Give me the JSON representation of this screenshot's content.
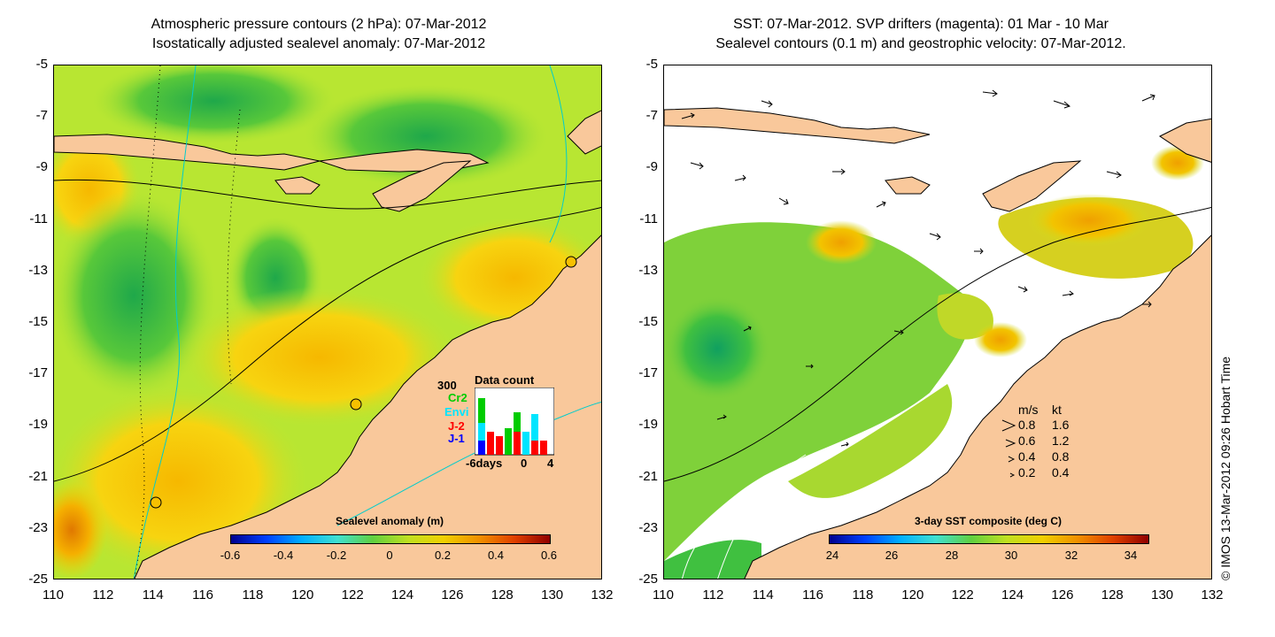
{
  "left_panel": {
    "title_line1": "Atmospheric pressure contours (2 hPa): 07-Mar-2012",
    "title_line2": "Isostatically adjusted sealevel anomaly: 07-Mar-2012",
    "colorbar": {
      "label": "Sealevel anomaly (m)",
      "ticks": [
        "-0.6",
        "-0.4",
        "-0.2",
        "0",
        "0.2",
        "0.4",
        "0.6"
      ]
    },
    "data_count": {
      "title": "Data count",
      "max_label": "300",
      "satellites": [
        {
          "name": "Cr2",
          "color": "#00cc00"
        },
        {
          "name": "Envi",
          "color": "#00e5ff"
        },
        {
          "name": "J-2",
          "color": "#ff0000"
        },
        {
          "name": "J-1",
          "color": "#0000ff"
        }
      ],
      "x_labels": [
        "-6days",
        "0",
        "4"
      ]
    }
  },
  "right_panel": {
    "title_line1": "SST: 07-Mar-2012. SVP drifters (magenta): 01 Mar - 10 Mar",
    "title_line2": "Sealevel contours (0.1 m) and geostrophic velocity: 07-Mar-2012.",
    "colorbar": {
      "label": "3-day SST composite (deg C)",
      "ticks": [
        "24",
        "26",
        "28",
        "30",
        "32",
        "34"
      ]
    },
    "velocity_legend": {
      "header_ms": "m/s",
      "header_kt": "kt",
      "rows": [
        {
          "ms": "0.8",
          "kt": "1.6"
        },
        {
          "ms": "0.6",
          "kt": "1.2"
        },
        {
          "ms": "0.4",
          "kt": "0.8"
        },
        {
          "ms": "0.2",
          "kt": "0.4"
        }
      ]
    }
  },
  "axes": {
    "x_ticks": [
      "110",
      "112",
      "114",
      "116",
      "118",
      "120",
      "122",
      "124",
      "126",
      "128",
      "130",
      "132"
    ],
    "y_ticks": [
      "-5",
      "-7",
      "-9",
      "-11",
      "-13",
      "-15",
      "-17",
      "-19",
      "-21",
      "-23",
      "-25"
    ]
  },
  "credit": "© IMOS 13-Mar-2012 09:26 Hobart Time",
  "colors": {
    "land": "#f9c89b",
    "sla_background": "#b8e632",
    "sst_background": "#7fd13a"
  }
}
